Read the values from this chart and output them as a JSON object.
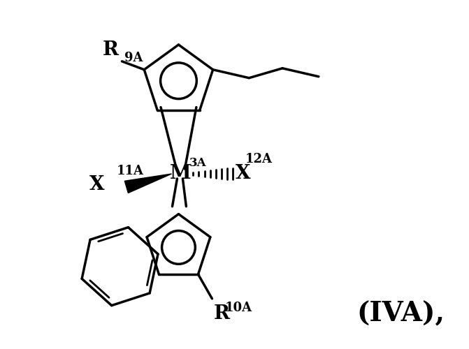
{
  "background": "#ffffff",
  "line_color": "#000000",
  "line_width": 2.5,
  "label_IVA": "(IVA),",
  "label_R9A": "R",
  "label_R9A_sup": "9A",
  "label_R10A": "R",
  "label_R10A_sup": "10A",
  "label_X11A": "X",
  "label_X11A_sup": "11A",
  "label_X12A": "X",
  "label_X12A_sup": "12A",
  "label_M3A": "M",
  "label_M3A_sup": "3A",
  "font_size_main": 17,
  "font_size_sup": 13,
  "font_size_IVA": 24
}
